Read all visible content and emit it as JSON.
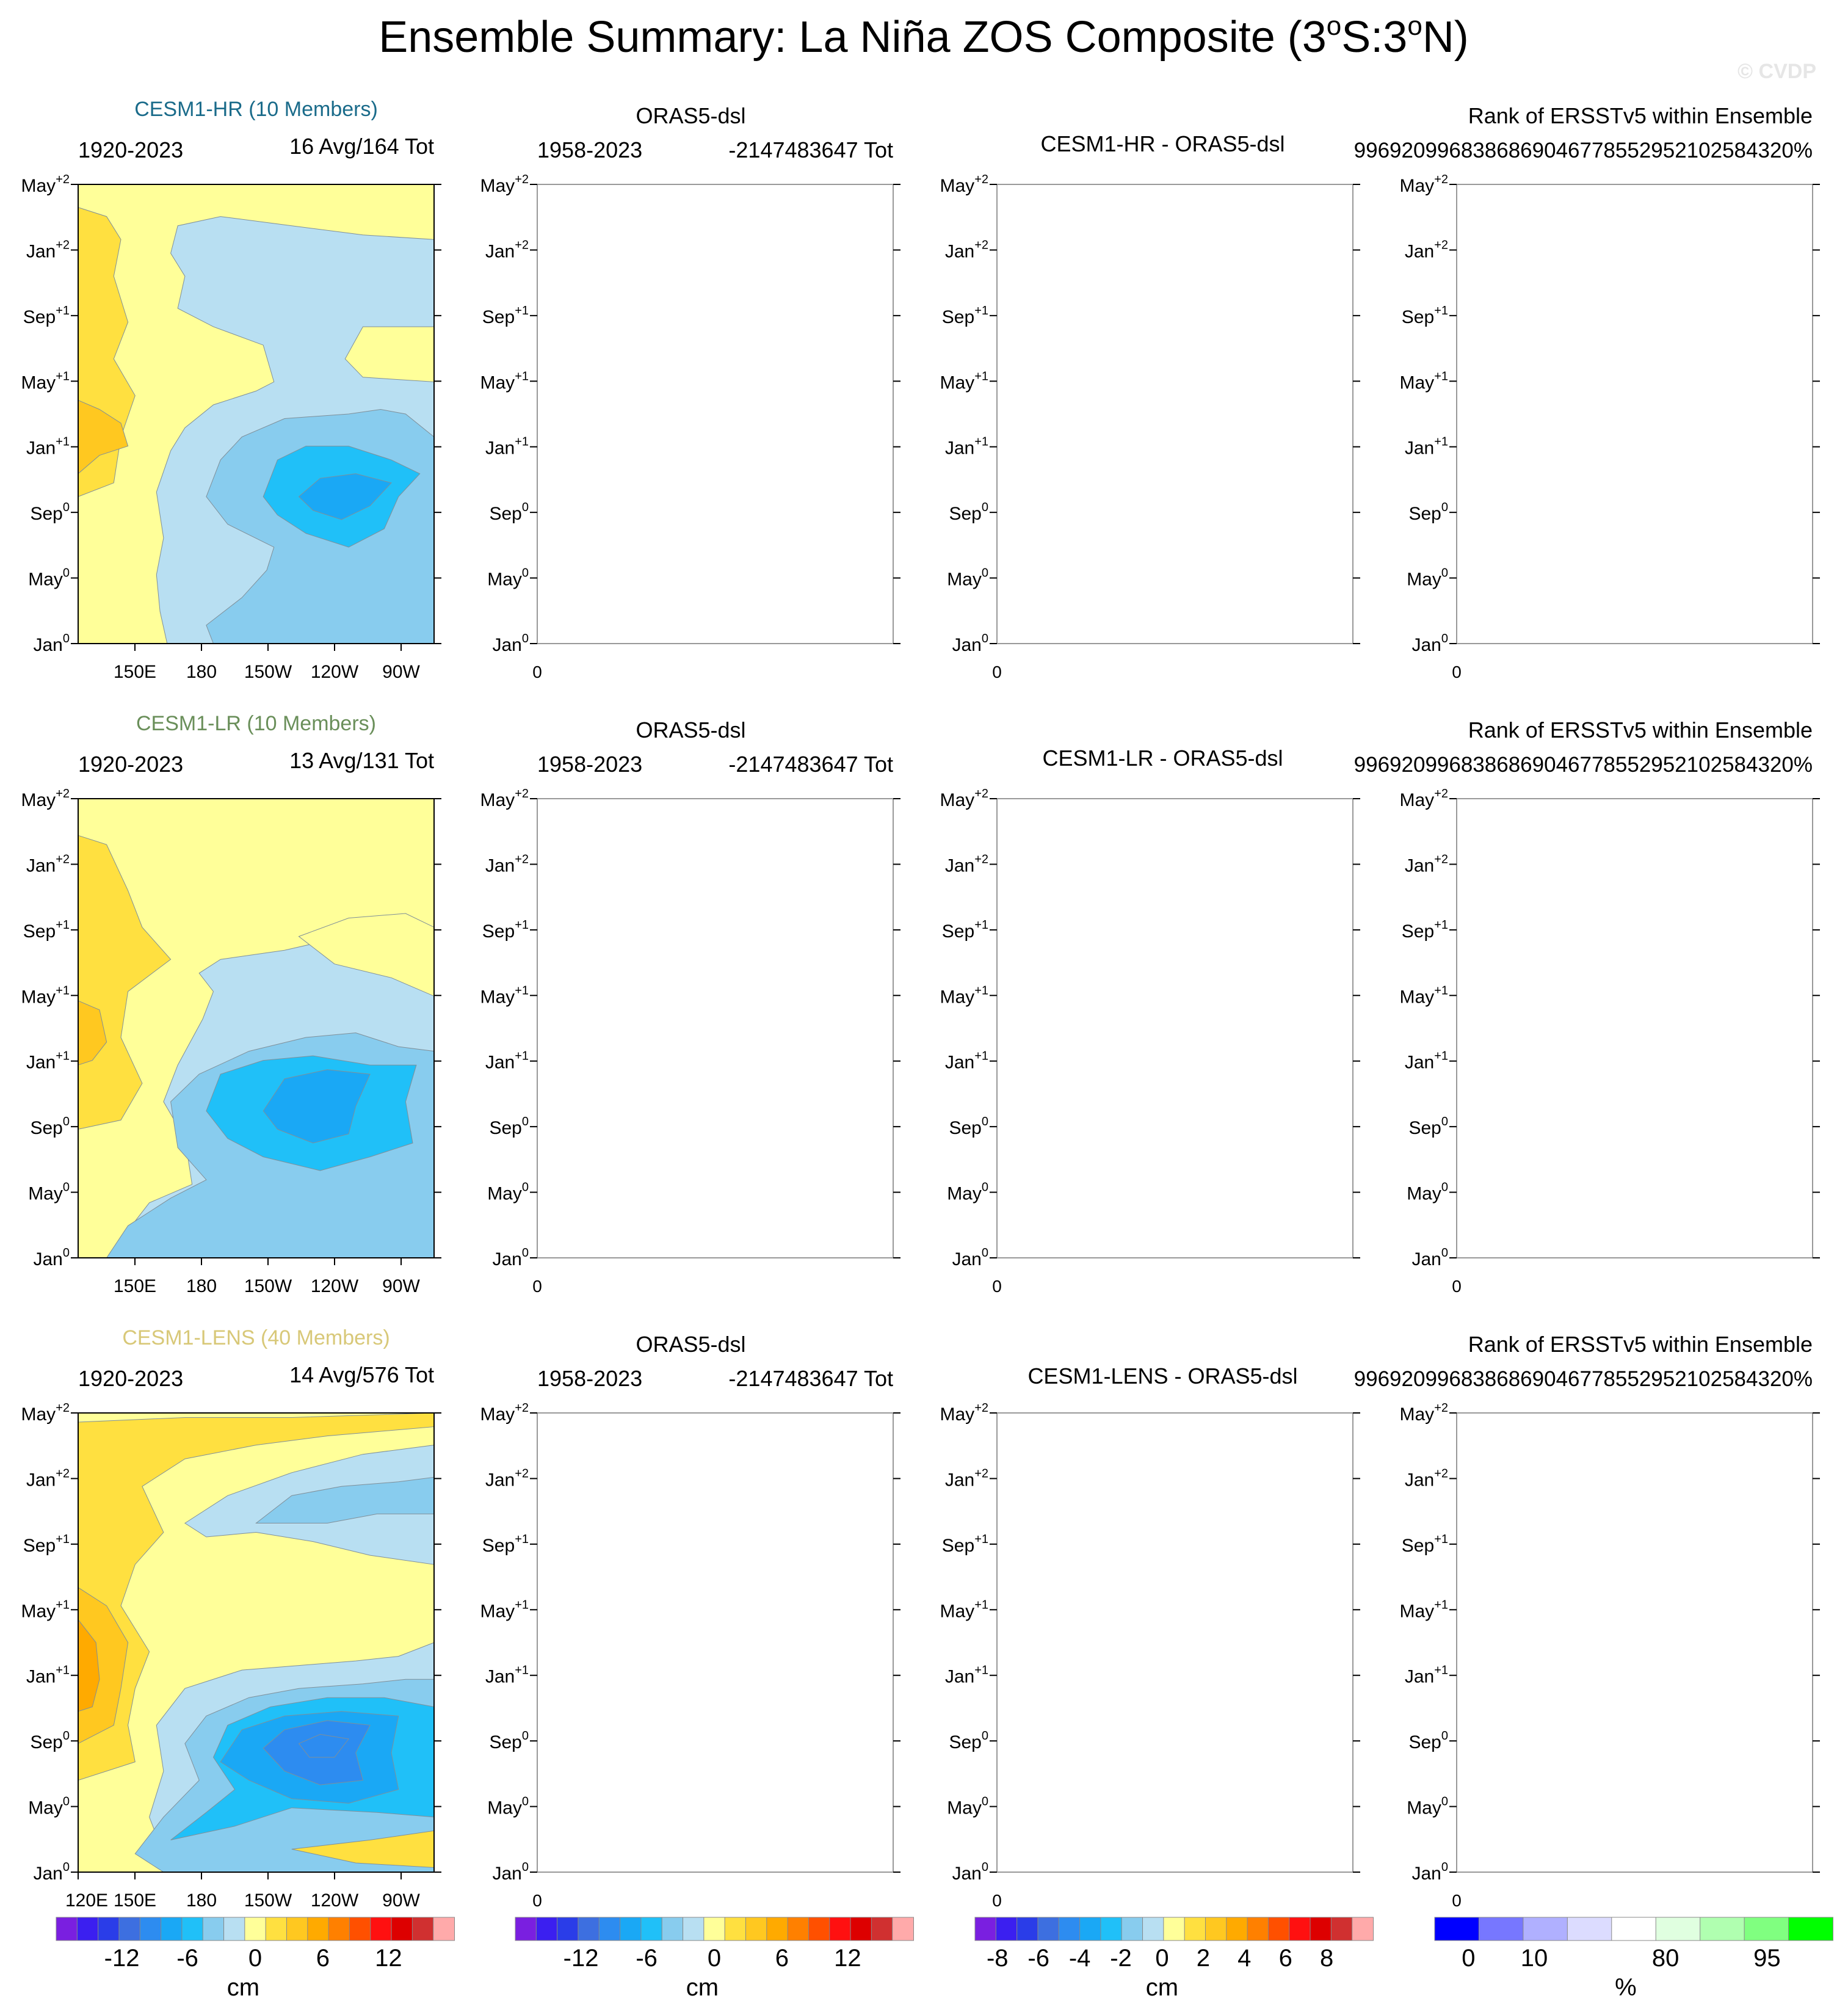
{
  "title": "Ensemble Summary: La Niña ZOS Composite (3°S:3°N)",
  "title_parts": {
    "pre": "Ensemble Summary: La Niña ZOS Composite (3",
    "deg": "o",
    "mid": "S:3",
    "post": "N)"
  },
  "watermark": "© CVDP",
  "y_ticks": [
    {
      "base": "Jan",
      "sup": "0"
    },
    {
      "base": "May",
      "sup": "0"
    },
    {
      "base": "Sep",
      "sup": "0"
    },
    {
      "base": "Jan",
      "sup": "+1"
    },
    {
      "base": "May",
      "sup": "+1"
    },
    {
      "base": "Sep",
      "sup": "+1"
    },
    {
      "base": "Jan",
      "sup": "+2"
    },
    {
      "base": "May",
      "sup": "+2"
    }
  ],
  "x_ticks": [
    "150E",
    "180",
    "150W",
    "120W",
    "90W"
  ],
  "x_ticks_bottom": [
    "120E",
    "150E",
    "180",
    "150W",
    "120W",
    "90W"
  ],
  "obs_x_tick": "0",
  "rows": [
    {
      "model": {
        "name": "CESM1-HR (10 Members)",
        "color": "#1a6b8a",
        "period": "1920-2023",
        "count": "16 Avg/164 Tot"
      },
      "obs": {
        "name": "ORAS5-dsl",
        "period": "1958-2023",
        "count": "-2147483647 Tot"
      },
      "diff": {
        "title": "CESM1-HR - ORAS5-dsl"
      },
      "rank": {
        "title": "Rank of ERSSTv5 within Ensemble",
        "value": "9969209968386869046778552952102584320%"
      }
    },
    {
      "model": {
        "name": "CESM1-LR (10 Members)",
        "color": "#6a8f5a",
        "period": "1920-2023",
        "count": "13 Avg/131 Tot"
      },
      "obs": {
        "name": "ORAS5-dsl",
        "period": "1958-2023",
        "count": "-2147483647 Tot"
      },
      "diff": {
        "title": "CESM1-LR - ORAS5-dsl"
      },
      "rank": {
        "title": "Rank of ERSSTv5 within Ensemble",
        "value": "9969209968386869046778552952102584320%"
      }
    },
    {
      "model": {
        "name": "CESM1-LENS (40 Members)",
        "color": "#d8c878",
        "period": "1920-2023",
        "count": "14 Avg/576 Tot"
      },
      "obs": {
        "name": "ORAS5-dsl",
        "period": "1958-2023",
        "count": "-2147483647 Tot"
      },
      "diff": {
        "title": "CESM1-LENS - ORAS5-dsl"
      },
      "rank": {
        "title": "Rank of ERSSTv5 within Ensemble",
        "value": "9969209968386869046778552952102584320%"
      }
    }
  ],
  "colorbars": [
    {
      "name": "zos-colorbar",
      "colors": [
        "#7a1fe0",
        "#3b1ff0",
        "#2a3de8",
        "#3d6fe0",
        "#2d8cf0",
        "#1aa8f5",
        "#20c0f8",
        "#88ccee",
        "#b8dff2",
        "#ffff99",
        "#ffe040",
        "#ffc820",
        "#ffaa00",
        "#ff8000",
        "#ff5000",
        "#ff1010",
        "#dd0000",
        "#d03030",
        "#ffaaaa"
      ],
      "labels": [
        "-12",
        "-6",
        "0",
        "6",
        "12"
      ],
      "unit": "cm"
    },
    {
      "name": "obs-colorbar",
      "colors": [
        "#7a1fe0",
        "#3b1ff0",
        "#2a3de8",
        "#3d6fe0",
        "#2d8cf0",
        "#1aa8f5",
        "#20c0f8",
        "#88ccee",
        "#b8dff2",
        "#ffff99",
        "#ffe040",
        "#ffc820",
        "#ffaa00",
        "#ff8000",
        "#ff5000",
        "#ff1010",
        "#dd0000",
        "#d03030",
        "#ffaaaa"
      ],
      "labels": [
        "-12",
        "-6",
        "0",
        "6",
        "12"
      ],
      "unit": "cm"
    },
    {
      "name": "diff-colorbar",
      "colors": [
        "#7a1fe0",
        "#3b1ff0",
        "#2a3de8",
        "#3d6fe0",
        "#2d8cf0",
        "#1aa8f5",
        "#20c0f8",
        "#88ccee",
        "#b8dff2",
        "#ffff99",
        "#ffe040",
        "#ffc820",
        "#ffaa00",
        "#ff8000",
        "#ff5000",
        "#ff1010",
        "#dd0000",
        "#d03030",
        "#ffaaaa"
      ],
      "labels": [
        "-8",
        "-6",
        "-4",
        "-2",
        "0",
        "2",
        "4",
        "6",
        "8"
      ],
      "unit": "cm"
    },
    {
      "name": "rank-colorbar",
      "colors": [
        "#0000ff",
        "#7777ff",
        "#b0b0ff",
        "#dcdcff",
        "#ffffff",
        "#e0ffe0",
        "#b0ffb0",
        "#80ff80",
        "#00ff00"
      ],
      "labels": [
        "0",
        "10",
        "80",
        "95"
      ],
      "unit": "%"
    }
  ],
  "chart_data": [
    {
      "type": "heatmap",
      "title": "CESM1-HR (10 Members)",
      "x_axis": "longitude",
      "y_axis": "month",
      "xlim": [
        "120E",
        "80W"
      ],
      "ylim": [
        "Jan0",
        "May+2"
      ],
      "unit": "cm",
      "contour_levels": [
        -16,
        -14,
        -12,
        -10,
        -8,
        -6,
        -4,
        -2,
        0,
        2,
        4,
        6,
        8,
        10,
        12,
        14,
        16
      ],
      "summary": {
        "min_cm": -6,
        "min_location": [
          "115W",
          "Oct0"
        ],
        "max_cm": 4,
        "max_location": [
          "125E",
          "Dec0"
        ]
      }
    },
    {
      "type": "heatmap",
      "title": "CESM1-LR (10 Members)",
      "x_axis": "longitude",
      "y_axis": "month",
      "xlim": [
        "120E",
        "80W"
      ],
      "ylim": [
        "Jan0",
        "May+2"
      ],
      "unit": "cm",
      "contour_levels": [
        -16,
        -14,
        -12,
        -10,
        -8,
        -6,
        -4,
        -2,
        0,
        2,
        4,
        6,
        8,
        10,
        12,
        14,
        16
      ],
      "summary": {
        "min_cm": -6,
        "min_location": [
          "130W",
          "Sep0"
        ],
        "max_cm": 4,
        "max_location": [
          "125E",
          "Jan+1"
        ]
      }
    },
    {
      "type": "heatmap",
      "title": "CESM1-LENS (40 Members)",
      "x_axis": "longitude",
      "y_axis": "month",
      "xlim": [
        "120E",
        "80W"
      ],
      "ylim": [
        "Jan0",
        "May+2"
      ],
      "unit": "cm",
      "contour_levels": [
        -16,
        -14,
        -12,
        -10,
        -8,
        -6,
        -4,
        -2,
        0,
        2,
        4,
        6,
        8,
        10,
        12,
        14,
        16
      ],
      "summary": {
        "min_cm": -8,
        "min_location": [
          "130W",
          "Oct0"
        ],
        "max_cm": 6,
        "max_location": [
          "125E",
          "Jan+1"
        ]
      }
    }
  ]
}
